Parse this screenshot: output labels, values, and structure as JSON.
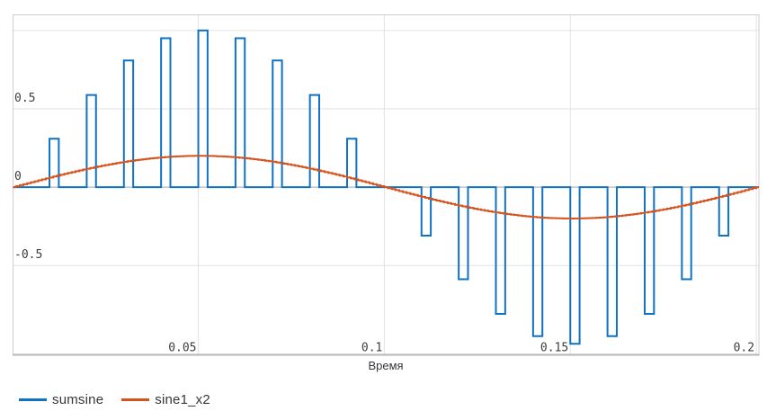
{
  "window": {
    "background": "#ffffff"
  },
  "chart_data": {
    "type": "line",
    "title": "",
    "xlabel": "Время",
    "ylabel": "",
    "xlim": [
      0.0002,
      0.2007
    ],
    "ylim": [
      -1.07,
      1.1
    ],
    "grid": true,
    "legend_position": "bottom-left",
    "x_ticks": [
      {
        "value": 0.05,
        "label": "0.05"
      },
      {
        "value": 0.1,
        "label": "0.1"
      },
      {
        "value": 0.15,
        "label": "0.15"
      },
      {
        "value": 0.2,
        "label": "0.2"
      }
    ],
    "y_ticks": [
      {
        "value": 0.5,
        "label": "0.5"
      },
      {
        "value": 0,
        "label": "0"
      },
      {
        "value": -0.5,
        "label": "-0.5"
      }
    ],
    "unlabeled_gridlines_y": [
      1.0
    ],
    "series": [
      {
        "name": "sumsine",
        "color": "#0f72c2",
        "shape": "pulse-train",
        "baseline": 0,
        "pulse_width": 0.0025,
        "pulses": [
          [
            0.01,
            0.309
          ],
          [
            0.02,
            0.588
          ],
          [
            0.03,
            0.809
          ],
          [
            0.04,
            0.951
          ],
          [
            0.05,
            1.0
          ],
          [
            0.06,
            0.951
          ],
          [
            0.07,
            0.809
          ],
          [
            0.08,
            0.588
          ],
          [
            0.09,
            0.309
          ],
          [
            0.1,
            0.0
          ],
          [
            0.11,
            -0.309
          ],
          [
            0.12,
            -0.588
          ],
          [
            0.13,
            -0.809
          ],
          [
            0.14,
            -0.951
          ],
          [
            0.15,
            -1.0
          ],
          [
            0.16,
            -0.951
          ],
          [
            0.17,
            -0.809
          ],
          [
            0.18,
            -0.588
          ],
          [
            0.19,
            -0.309
          ]
        ]
      },
      {
        "name": "sine1_x2",
        "color": "#d5531e",
        "shape": "staircase-sine",
        "amplitude": 0.2,
        "period": 0.2,
        "phase": 0,
        "sample_step": 0.001,
        "t_start": 0,
        "t_end": 0.2007
      }
    ]
  },
  "colors": {
    "gridline": "#e2e2e2",
    "zero_line": "#c2c2c2",
    "border": "#cdced0",
    "border_bottom": "#b3b6b9",
    "tick_text": "#3d3d3d",
    "label_text": "#35373b"
  }
}
